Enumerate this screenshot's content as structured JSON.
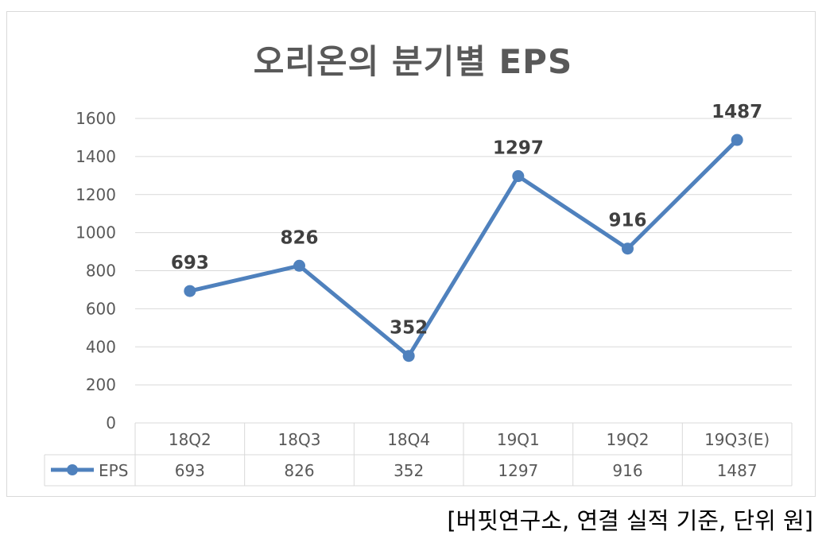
{
  "page": {
    "title": "오리온의 분기별 EPS",
    "source_note": "[버핏연구소, 연결 실적 기준, 단위 원]"
  },
  "chart_data": {
    "type": "line",
    "title": "오리온의 분기별 EPS",
    "categories": [
      "18Q2",
      "18Q3",
      "18Q4",
      "19Q1",
      "19Q2",
      "19Q3(E)"
    ],
    "series": [
      {
        "name": "EPS",
        "values": [
          693,
          826,
          352,
          1297,
          916,
          1487
        ],
        "color": "#4f81bd"
      }
    ],
    "ylim": [
      0,
      1600
    ],
    "yticks": [
      0,
      200,
      400,
      600,
      800,
      1000,
      1200,
      1400,
      1600
    ],
    "grid": true,
    "data_labels": true,
    "data_table": true,
    "colors": {
      "line": "#4f81bd",
      "grid": "#d9d9d9",
      "axis_text": "#595959",
      "label_text": "#404040"
    }
  }
}
